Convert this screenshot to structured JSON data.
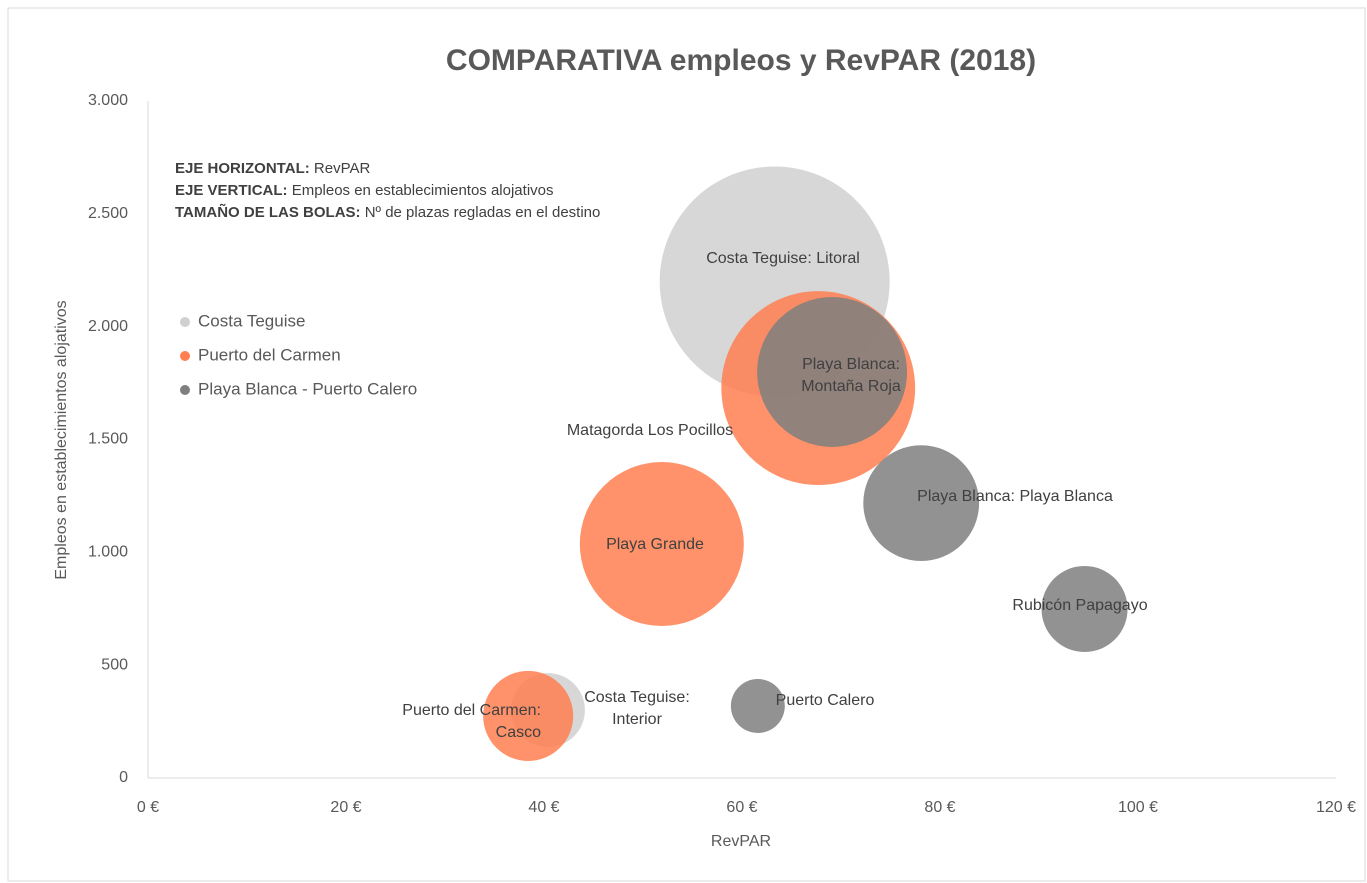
{
  "chart_data": {
    "type": "bubble",
    "title": "COMPARATIVA empleos y RevPAR (2018)",
    "xlabel": "RevPAR",
    "ylabel": "Empleos en establecimientos alojativos",
    "annotations": [
      {
        "bold": "EJE HORIZONTAL:",
        "text": "RevPAR"
      },
      {
        "bold": "EJE VERTICAL:",
        "text": "Empleos en establecimientos alojativos"
      },
      {
        "bold": "TAMAÑO DE LAS BOLAS:",
        "text": "Nº de plazas regladas en el destino"
      }
    ],
    "xlim": [
      0,
      120
    ],
    "xticks": [
      {
        "value": 0,
        "label": "0 €"
      },
      {
        "value": 20,
        "label": "20 €"
      },
      {
        "value": 40,
        "label": "40 €"
      },
      {
        "value": 60,
        "label": "60 €"
      },
      {
        "value": 80,
        "label": "80 €"
      },
      {
        "value": 100,
        "label": "100 €"
      },
      {
        "value": 120,
        "label": "120 €"
      }
    ],
    "ylim": [
      0,
      3000
    ],
    "yticks": [
      0,
      500,
      {
        "value": 1000,
        "label": "1.000"
      },
      {
        "value": 1500,
        "label": "1.500"
      },
      {
        "value": 2000,
        "label": "2.000"
      },
      {
        "value": 2500,
        "label": "2.500"
      },
      {
        "value": 3000,
        "label": "3.000"
      }
    ],
    "grid": false,
    "series": [
      {
        "name": "Costa Teguise",
        "color": "#d0d0d0",
        "x": [
          63.3,
          40.4
        ],
        "values": [
          2200,
          301
        ],
        "sizes": [
          30000,
          3100
        ],
        "labels": [
          "Costa Teguise: Litoral",
          "Costa Teguise: Interior"
        ]
      },
      {
        "name": "Puerto del Carmen",
        "color": "#ff7f50",
        "x": [
          67.7,
          51.9,
          38.4
        ],
        "values": [
          1728,
          1037,
          275
        ],
        "sizes": [
          21300,
          15250,
          4600
        ],
        "labels": [
          "Matagorda Los Pocillos",
          "Playa Grande",
          "Puerto del Carmen: Casco"
        ]
      },
      {
        "name": "Playa Blanca - Puerto Calero",
        "color": "#7f7f7f",
        "x": [
          69.1,
          78.1,
          94.6,
          61.6
        ],
        "values": [
          1799,
          1218,
          749,
          319
        ],
        "sizes": [
          12750,
          7600,
          4200,
          1650
        ],
        "labels": [
          "Playa Blanca: Montaña Roja",
          "Playa Blanca: Playa Blanca",
          "Rubicón Papagayo",
          "Puerto Calero"
        ]
      }
    ]
  }
}
